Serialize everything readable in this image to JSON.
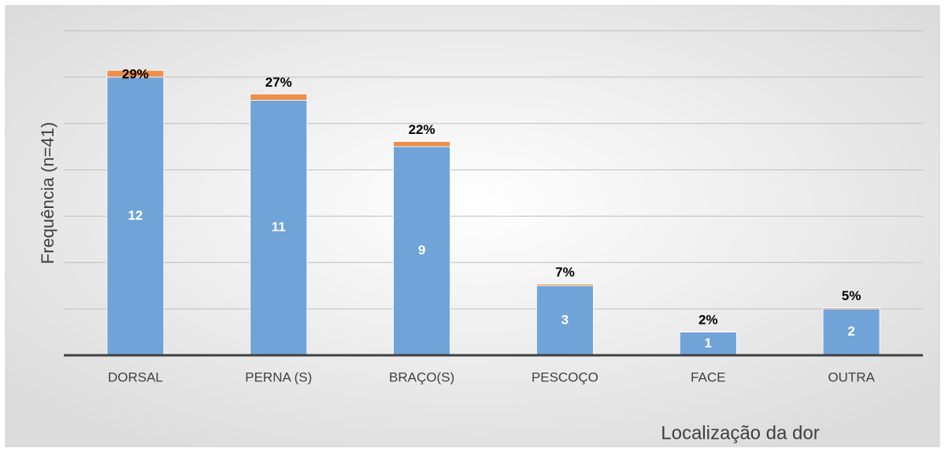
{
  "chart_data": {
    "type": "stacked_bar",
    "xlabel": "Localização da dor",
    "ylabel": "Frequência (n=41)",
    "categories": [
      "DORSAL",
      "PERNA (S)",
      "BRAÇO(S)",
      "PESCOÇO",
      "FACE",
      "OUTRA"
    ],
    "series": [
      {
        "color": "#70a4d9",
        "values": [
          12,
          11,
          9,
          3,
          1,
          2
        ]
      },
      {
        "color": "#ed8e4c",
        "values": [
          0.29,
          0.27,
          0.22,
          0.07,
          0.02,
          0.05
        ],
        "value_labels": [
          "29%",
          "27%",
          "22%",
          "7%",
          "2%",
          "5%"
        ]
      }
    ],
    "ylim": [
      0,
      14
    ],
    "yticks": [
      0,
      2,
      4,
      6,
      8,
      10,
      12,
      14
    ],
    "grid": true
  }
}
